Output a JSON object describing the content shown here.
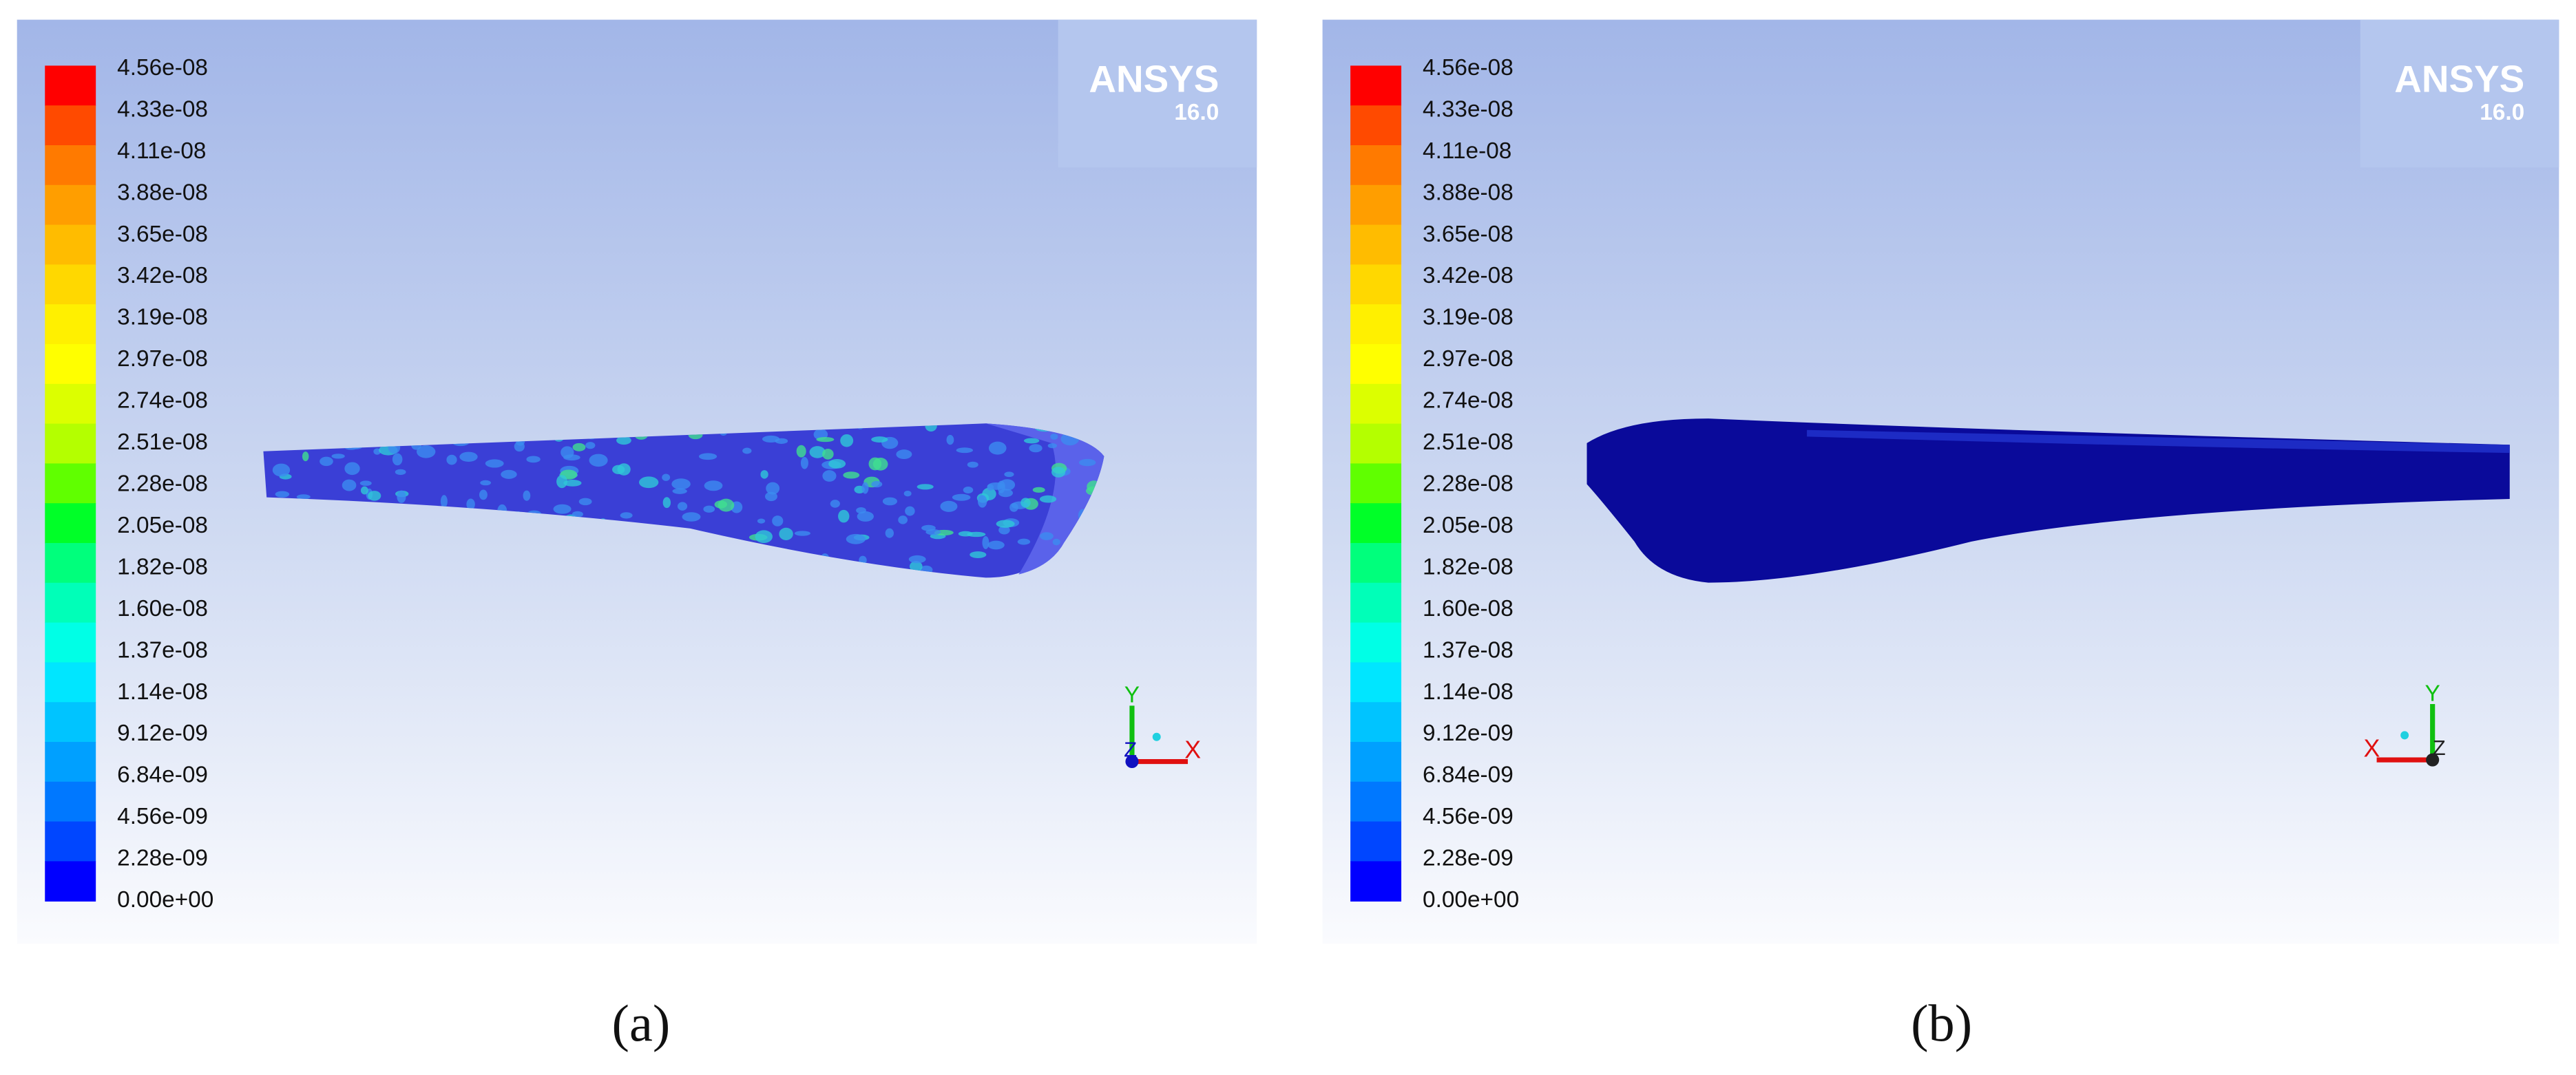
{
  "panels": [
    {
      "caption": "(a)",
      "logo": {
        "name": "ANSYS",
        "version": "16.0"
      },
      "colorbar": {
        "labels": [
          "4.56e-08",
          "4.33e-08",
          "4.11e-08",
          "3.88e-08",
          "3.65e-08",
          "3.42e-08",
          "3.19e-08",
          "2.97e-08",
          "2.74e-08",
          "2.51e-08",
          "2.28e-08",
          "2.05e-08",
          "1.82e-08",
          "1.60e-08",
          "1.37e-08",
          "1.14e-08",
          "9.12e-09",
          "6.84e-09",
          "4.56e-09",
          "2.28e-09",
          "0.00e+00"
        ],
        "colors": [
          "#ff0000",
          "#ff4a00",
          "#ff7a00",
          "#ff9e00",
          "#ffbc00",
          "#ffd800",
          "#fff000",
          "#ffff00",
          "#dcff00",
          "#b4ff00",
          "#60ff00",
          "#00ff28",
          "#00ff7c",
          "#00ffb8",
          "#00ffe6",
          "#00e6ff",
          "#00c4ff",
          "#00a0ff",
          "#0078ff",
          "#0046ff",
          "#0000ff"
        ]
      },
      "axes": {
        "y": "Y",
        "z": "Z",
        "x": "X"
      }
    },
    {
      "caption": "(b)",
      "logo": {
        "name": "ANSYS",
        "version": "16.0"
      },
      "colorbar": {
        "labels": [
          "4.56e-08",
          "4.33e-08",
          "4.11e-08",
          "3.88e-08",
          "3.65e-08",
          "3.42e-08",
          "3.19e-08",
          "2.97e-08",
          "2.74e-08",
          "2.51e-08",
          "2.28e-08",
          "2.05e-08",
          "1.82e-08",
          "1.60e-08",
          "1.37e-08",
          "1.14e-08",
          "9.12e-09",
          "6.84e-09",
          "4.56e-09",
          "2.28e-09",
          "0.00e+00"
        ],
        "colors": [
          "#ff0000",
          "#ff4a00",
          "#ff7a00",
          "#ff9e00",
          "#ffbc00",
          "#ffd800",
          "#fff000",
          "#ffff00",
          "#dcff00",
          "#b4ff00",
          "#60ff00",
          "#00ff28",
          "#00ff7c",
          "#00ffb8",
          "#00ffe6",
          "#00e6ff",
          "#00c4ff",
          "#00a0ff",
          "#0078ff",
          "#0046ff",
          "#0000ff"
        ]
      },
      "axes": {
        "y": "Y",
        "z": "Z",
        "x": "X"
      }
    }
  ]
}
